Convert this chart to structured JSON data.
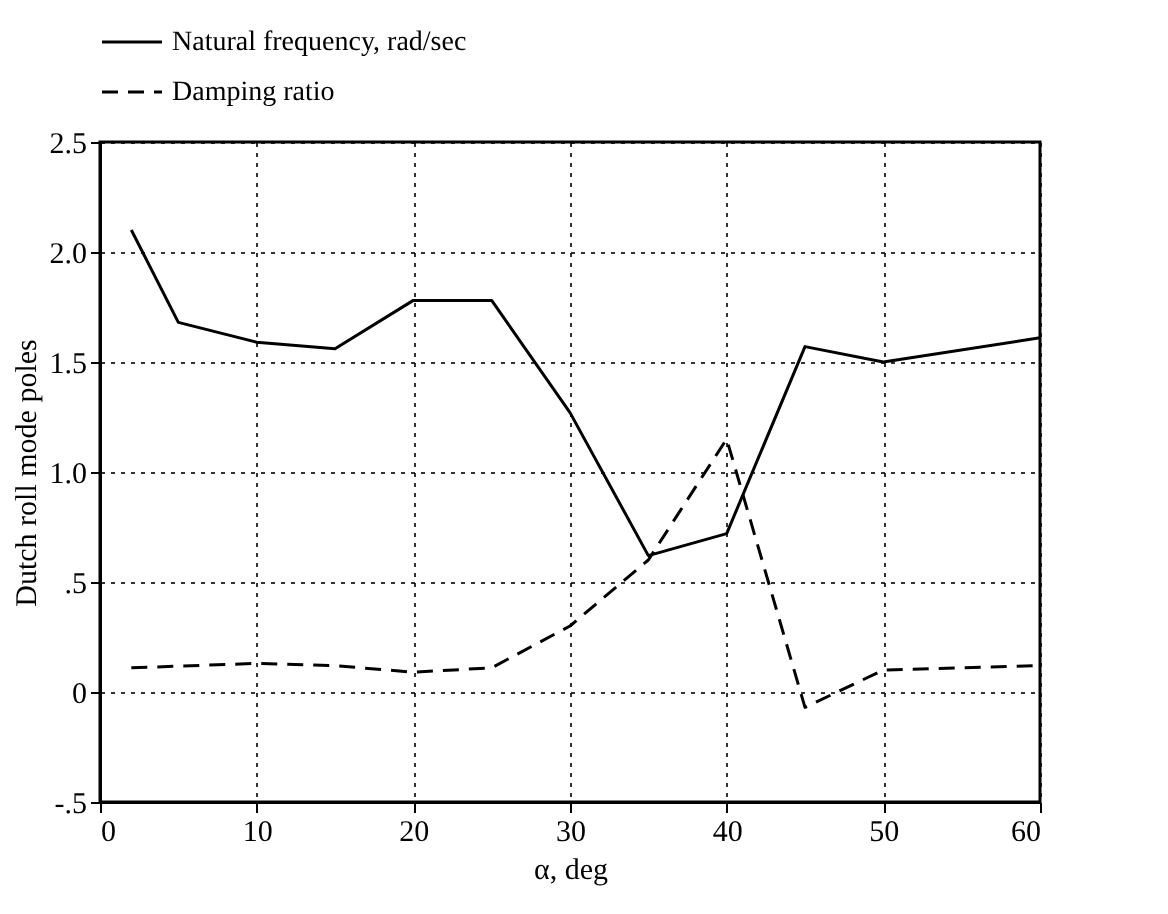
{
  "chart_data": {
    "type": "line",
    "xlabel": "α, deg",
    "ylabel": "Dutch roll mode poles",
    "xlim": [
      0,
      60
    ],
    "xticks": [
      0,
      10,
      20,
      30,
      40,
      50,
      60
    ],
    "ylim": [
      -0.5,
      2.5
    ],
    "yticks": [
      {
        "value": -0.5,
        "label": "-.5"
      },
      0,
      {
        "value": 0.5,
        "label": ".5"
      },
      {
        "value": 1,
        "label": "1.0"
      },
      1.5,
      {
        "value": 2,
        "label": "2.0"
      },
      2.5
    ],
    "grid": true,
    "legend": "top",
    "marker": "none",
    "series": [
      {
        "name": "Natural frequency, rad/sec",
        "color": "#000000",
        "line_style": "solid",
        "x": [
          2,
          5,
          10,
          15,
          20,
          25,
          30,
          35,
          40,
          45,
          50,
          60
        ],
        "values": [
          2.1,
          1.68,
          1.59,
          1.56,
          1.78,
          1.78,
          1.27,
          0.62,
          0.72,
          1.57,
          1.5,
          1.61
        ]
      },
      {
        "name": "Damping ratio",
        "color": "#000000",
        "line_style": "dashed",
        "x": [
          2,
          10,
          15,
          20,
          25,
          30,
          35,
          40,
          45,
          50,
          60
        ],
        "values": [
          0.11,
          0.13,
          0.12,
          0.09,
          0.11,
          0.3,
          0.6,
          1.15,
          -0.07,
          0.1,
          0.12
        ]
      }
    ]
  }
}
